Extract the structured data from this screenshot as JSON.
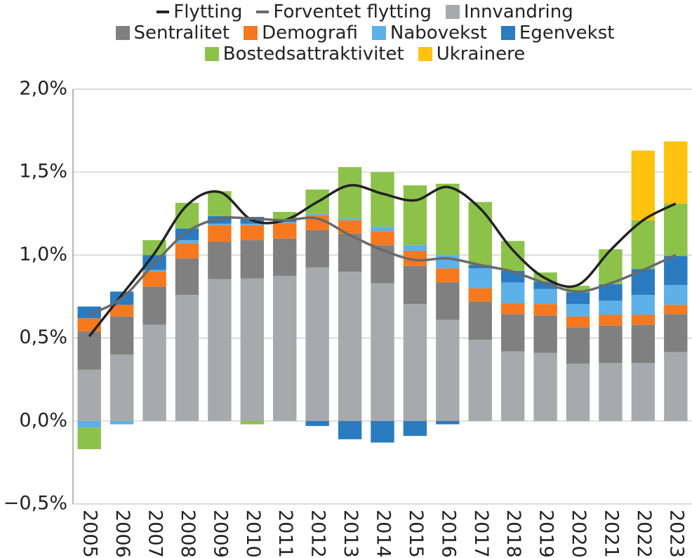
{
  "chart_data": {
    "type": "bar",
    "stacked": true,
    "categories": [
      "2005",
      "2006",
      "2007",
      "2008",
      "2009",
      "2010",
      "2011",
      "2012",
      "2013",
      "2014",
      "2015",
      "2016",
      "2017",
      "2018",
      "2019",
      "2020",
      "2021",
      "2022",
      "2023"
    ],
    "series": [
      {
        "name": "Flytting",
        "type": "line",
        "color": "#222222",
        "values": [
          0.51,
          0.76,
          1.01,
          1.3,
          1.38,
          1.21,
          1.21,
          1.32,
          1.42,
          1.37,
          1.33,
          1.41,
          1.28,
          1.03,
          0.86,
          0.82,
          1.03,
          1.21,
          1.31
        ]
      },
      {
        "name": "Forventet flytting",
        "type": "line",
        "color": "#6a6a6a",
        "values": [
          0.64,
          0.74,
          0.95,
          1.14,
          1.22,
          1.22,
          1.21,
          1.22,
          1.12,
          1.03,
          0.97,
          0.98,
          0.94,
          0.9,
          0.83,
          0.78,
          0.83,
          0.91,
          1.0
        ]
      },
      {
        "name": "Innvandring",
        "type": "bar",
        "color": "#a7a9ac",
        "values": [
          0.31,
          0.4,
          0.58,
          0.76,
          0.855,
          0.86,
          0.875,
          0.925,
          0.9,
          0.83,
          0.705,
          0.61,
          0.49,
          0.42,
          0.41,
          0.345,
          0.35,
          0.35,
          0.415
        ]
      },
      {
        "name": "Sentralitet",
        "type": "bar",
        "color": "#808080",
        "values": [
          0.23,
          0.23,
          0.23,
          0.22,
          0.225,
          0.23,
          0.225,
          0.225,
          0.23,
          0.23,
          0.23,
          0.225,
          0.23,
          0.225,
          0.225,
          0.22,
          0.225,
          0.23,
          0.23
        ]
      },
      {
        "name": "Demografi",
        "type": "bar",
        "color": "#f6791f",
        "values": [
          0.08,
          0.07,
          0.09,
          0.09,
          0.1,
          0.09,
          0.09,
          0.09,
          0.08,
          0.085,
          0.09,
          0.085,
          0.08,
          0.065,
          0.07,
          0.065,
          0.065,
          0.06,
          0.055
        ]
      },
      {
        "name": "Nabovekst",
        "type": "bar",
        "color": "#5db0e8",
        "values": [
          -0.04,
          -0.02,
          0.01,
          0.02,
          0.01,
          0.01,
          0.01,
          0.01,
          0.01,
          0.025,
          0.035,
          0.08,
          0.12,
          0.125,
          0.09,
          0.075,
          0.085,
          0.12,
          0.12
        ]
      },
      {
        "name": "Egenvekst",
        "type": "bar",
        "color": "#2a7bc0",
        "values": [
          0.07,
          0.08,
          0.09,
          0.07,
          0.045,
          0.04,
          0.01,
          -0.03,
          -0.11,
          -0.13,
          -0.09,
          -0.02,
          0.02,
          0.07,
          0.045,
          0.07,
          0.1,
          0.155,
          0.175
        ]
      },
      {
        "name": "Bostedsattraktivitet",
        "type": "bar",
        "color": "#8cc24a",
        "values": [
          -0.13,
          0,
          0.09,
          0.155,
          0.15,
          -0.02,
          0.05,
          0.145,
          0.31,
          0.33,
          0.36,
          0.43,
          0.38,
          0.18,
          0.055,
          0.04,
          0.21,
          0.295,
          0.315
        ]
      },
      {
        "name": "Ukrainere",
        "type": "bar",
        "color": "#ffc20e",
        "values": [
          0,
          0,
          0,
          0,
          0,
          0,
          0,
          0,
          0,
          0,
          0,
          0,
          0,
          0,
          0,
          0,
          0,
          0.42,
          0.375
        ]
      }
    ],
    "ylim": [
      -0.5,
      2.0
    ],
    "yticks": [
      {
        "value": -0.5,
        "label": "−0,5%"
      },
      {
        "value": 0,
        "label": "0,0%"
      },
      {
        "value": 0.5,
        "label": "0,5%"
      },
      {
        "value": 1.0,
        "label": "1,0%"
      },
      {
        "value": 1.5,
        "label": "1,5%"
      },
      {
        "value": 2.0,
        "label": "2,0%"
      }
    ],
    "grid": true
  }
}
